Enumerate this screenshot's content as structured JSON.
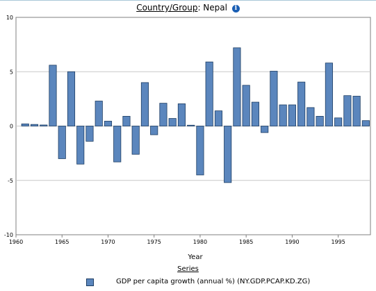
{
  "header": {
    "label": "Country/Group",
    "value": "Nepal",
    "info_icon": "info-icon"
  },
  "colors": {
    "bar": "#5b86bd",
    "bar_edge": "#1d3d63",
    "gridline": "#c8c8c8"
  },
  "legend": {
    "title": "Series",
    "items": [
      {
        "label": "GDP per capita growth (annual %) (NY.GDP.PCAP.KD.ZG)"
      }
    ]
  },
  "chart_data": {
    "type": "bar",
    "xlabel": "Year",
    "ylabel": "",
    "ylim": [
      -10,
      10
    ],
    "xlim": [
      1960,
      1998.5
    ],
    "yticks": [
      -10,
      -5,
      0,
      5,
      10
    ],
    "xticks": [
      1960,
      1965,
      1970,
      1975,
      1980,
      1985,
      1990,
      1995
    ],
    "grid": "horizontal",
    "legend_position": "bottom",
    "series": [
      {
        "name": "GDP per capita growth (annual %) (NY.GDP.PCAP.KD.ZG)",
        "x": [
          1961,
          1962,
          1963,
          1964,
          1965,
          1966,
          1967,
          1968,
          1969,
          1970,
          1971,
          1972,
          1973,
          1974,
          1975,
          1976,
          1977,
          1978,
          1979,
          1980,
          1981,
          1982,
          1983,
          1984,
          1985,
          1986,
          1987,
          1988,
          1989,
          1990,
          1991,
          1992,
          1993,
          1994,
          1995,
          1996,
          1997,
          1998
        ],
        "values": [
          0.2,
          0.15,
          0.1,
          5.6,
          -3.0,
          5.0,
          -3.5,
          -1.4,
          2.3,
          0.45,
          -3.3,
          0.9,
          -2.6,
          4.0,
          -0.8,
          2.1,
          0.7,
          2.05,
          0.08,
          -4.5,
          5.9,
          1.4,
          -5.2,
          7.2,
          3.75,
          2.2,
          -0.6,
          5.05,
          1.95,
          1.95,
          4.05,
          1.7,
          0.9,
          5.8,
          0.75,
          2.8,
          2.75,
          0.5
        ]
      }
    ]
  }
}
